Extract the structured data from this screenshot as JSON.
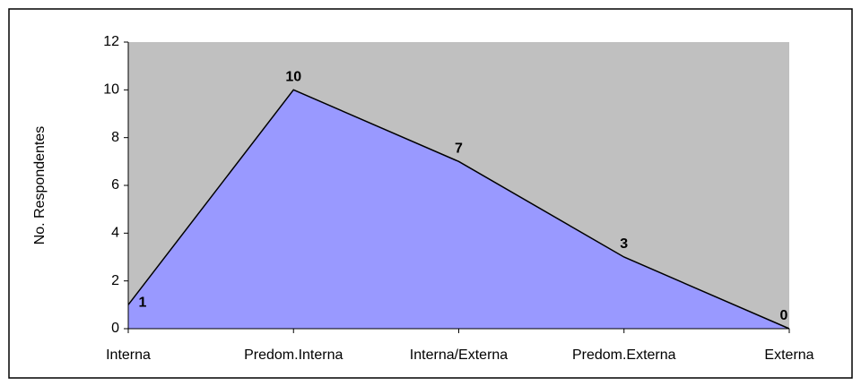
{
  "chart_data": {
    "type": "area",
    "y_label": "No. Respondentes",
    "categories": [
      "Interna",
      "Predom.Interna",
      "Interna/Externa",
      "Predom.Externa",
      "Externa"
    ],
    "values": [
      1,
      10,
      7,
      3,
      0
    ],
    "color": "#9999ff",
    "background": "#c0c0c0",
    "ylim": [
      0,
      12
    ],
    "yticks": [
      0,
      2,
      4,
      6,
      8,
      10,
      12
    ]
  }
}
